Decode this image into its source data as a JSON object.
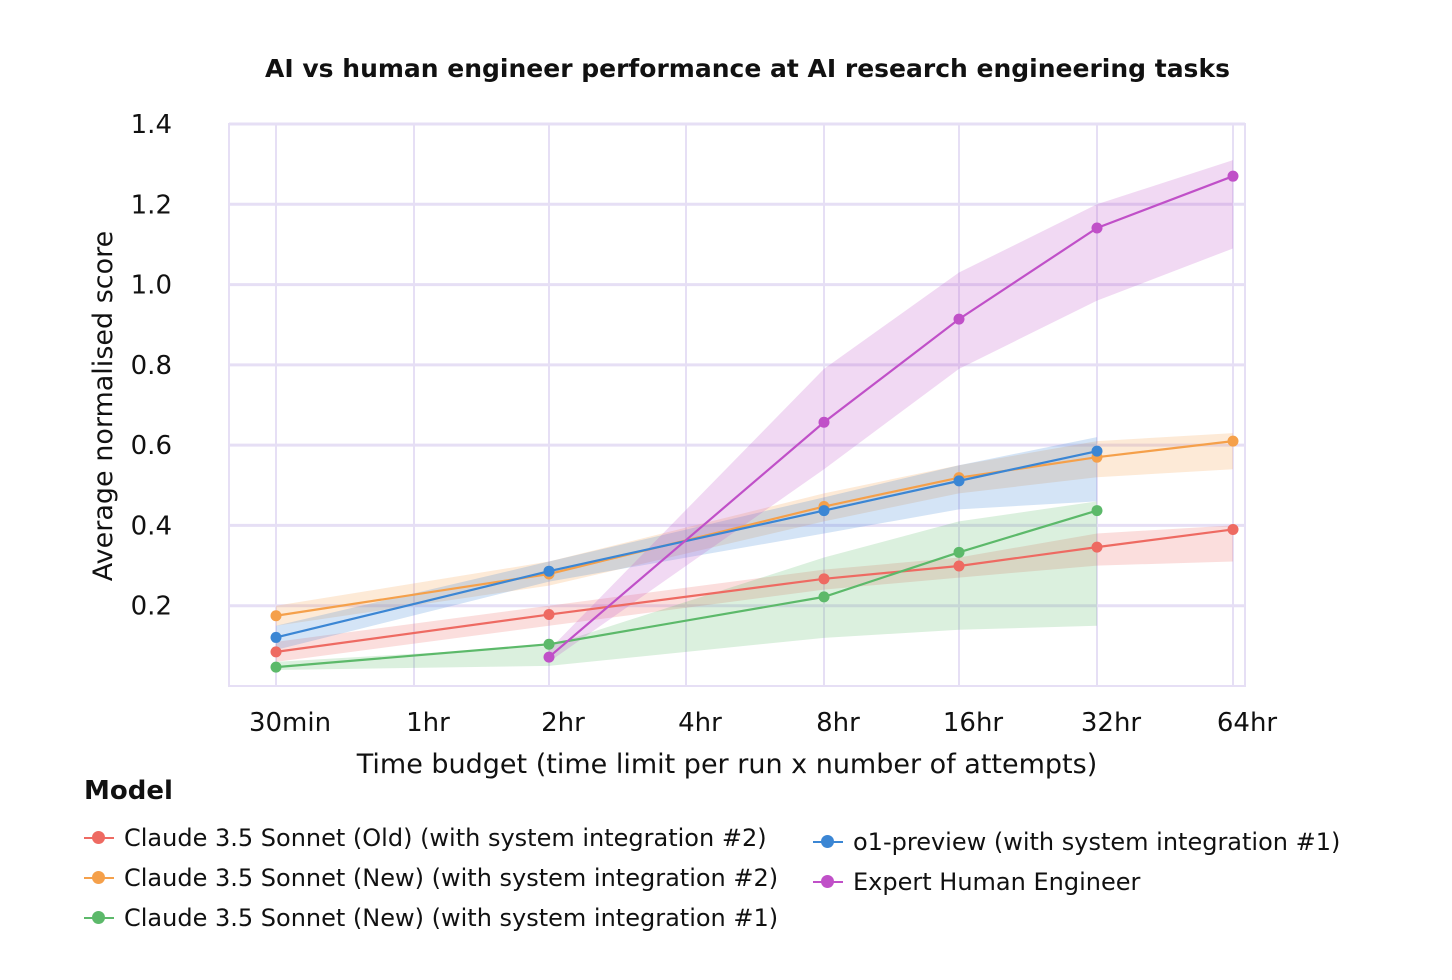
{
  "chart_data": {
    "type": "line",
    "title": "AI vs human engineer performance at AI research engineering tasks",
    "xlabel": "Time budget (time limit per run x number of attempts)",
    "ylabel": "Average normalised score",
    "categories": [
      "30min",
      "1hr",
      "2hr",
      "4hr",
      "8hr",
      "16hr",
      "32hr",
      "64hr"
    ],
    "yticks": [
      "0.2",
      "0.4",
      "0.6",
      "0.8",
      "1.0",
      "1.2",
      "1.4"
    ],
    "ylim": [
      0,
      1.4
    ],
    "grid": true,
    "legend_title": "Model",
    "legend_placement": "bottom",
    "series": [
      {
        "name": "Claude 3.5 Sonnet (Old) (with system integration #2)",
        "color": "#ee6a62",
        "points": [
          {
            "x": "30min",
            "y": 0.085,
            "lo": 0.06,
            "hi": 0.11
          },
          {
            "x": "2hr",
            "y": 0.178,
            "lo": 0.15,
            "hi": 0.2
          },
          {
            "x": "8hr",
            "y": 0.267,
            "lo": 0.24,
            "hi": 0.29
          },
          {
            "x": "16hr",
            "y": 0.299,
            "lo": 0.27,
            "hi": 0.32
          },
          {
            "x": "32hr",
            "y": 0.346,
            "lo": 0.3,
            "hi": 0.38
          },
          {
            "x": "64hr",
            "y": 0.39,
            "lo": 0.31,
            "hi": 0.4
          }
        ]
      },
      {
        "name": "Claude 3.5 Sonnet (New) (with system integration #2)",
        "color": "#f5a04a",
        "points": [
          {
            "x": "30min",
            "y": 0.175,
            "lo": 0.15,
            "hi": 0.2
          },
          {
            "x": "2hr",
            "y": 0.279,
            "lo": 0.25,
            "hi": 0.31
          },
          {
            "x": "8hr",
            "y": 0.447,
            "lo": 0.41,
            "hi": 0.48
          },
          {
            "x": "16hr",
            "y": 0.519,
            "lo": 0.48,
            "hi": 0.55
          },
          {
            "x": "32hr",
            "y": 0.57,
            "lo": 0.52,
            "hi": 0.61
          },
          {
            "x": "64hr",
            "y": 0.61,
            "lo": 0.54,
            "hi": 0.63
          }
        ]
      },
      {
        "name": "Claude 3.5 Sonnet (New) (with system integration #1)",
        "color": "#5cb96a",
        "points": [
          {
            "x": "30min",
            "y": 0.047,
            "lo": 0.04,
            "hi": 0.06
          },
          {
            "x": "2hr",
            "y": 0.104,
            "lo": 0.05,
            "hi": 0.1
          },
          {
            "x": "8hr",
            "y": 0.222,
            "lo": 0.12,
            "hi": 0.32
          },
          {
            "x": "16hr",
            "y": 0.333,
            "lo": 0.14,
            "hi": 0.41
          },
          {
            "x": "32hr",
            "y": 0.437,
            "lo": 0.15,
            "hi": 0.46
          }
        ]
      },
      {
        "name": "o1-preview (with system integration #1)",
        "color": "#3b86d4",
        "points": [
          {
            "x": "30min",
            "y": 0.121,
            "lo": 0.09,
            "hi": 0.15
          },
          {
            "x": "2hr",
            "y": 0.286,
            "lo": 0.26,
            "hi": 0.31
          },
          {
            "x": "8hr",
            "y": 0.437,
            "lo": 0.38,
            "hi": 0.47
          },
          {
            "x": "16hr",
            "y": 0.511,
            "lo": 0.44,
            "hi": 0.55
          },
          {
            "x": "32hr",
            "y": 0.585,
            "lo": 0.46,
            "hi": 0.62
          }
        ]
      },
      {
        "name": "Expert Human Engineer",
        "color": "#c050c8",
        "points": [
          {
            "x": "2hr",
            "y": 0.072,
            "lo": 0.06,
            "hi": 0.09
          },
          {
            "x": "8hr",
            "y": 0.657,
            "lo": 0.54,
            "hi": 0.79
          },
          {
            "x": "16hr",
            "y": 0.914,
            "lo": 0.79,
            "hi": 1.03
          },
          {
            "x": "32hr",
            "y": 1.141,
            "lo": 0.96,
            "hi": 1.2
          },
          {
            "x": "64hr",
            "y": 1.27,
            "lo": 1.09,
            "hi": 1.31
          }
        ]
      }
    ]
  }
}
